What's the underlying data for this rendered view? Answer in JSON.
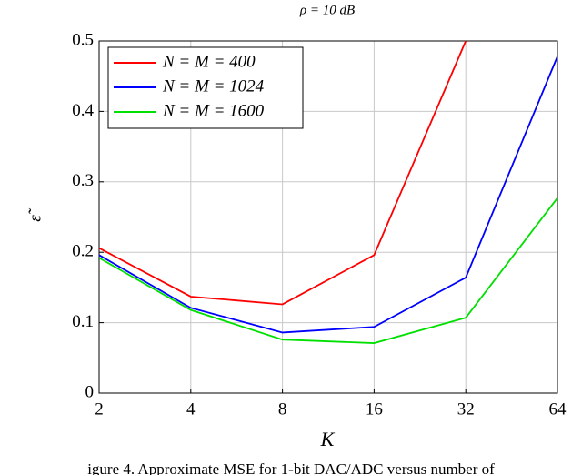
{
  "chart_data": {
    "type": "line",
    "title": "ρ = 10 dB",
    "x_label": "K",
    "y_label": "ε̃",
    "caption": "igure 4. Approximate MSE for 1-bit DAC/ADC versus number of",
    "x": [
      2,
      4,
      8,
      16,
      32,
      64
    ],
    "xscale": "log",
    "xlim": [
      2,
      64
    ],
    "xticks": [
      2,
      4,
      8,
      16,
      32,
      64
    ],
    "ylim": [
      0,
      0.5
    ],
    "yticks": [
      0,
      0.1,
      0.2,
      0.3,
      0.4,
      0.5
    ],
    "grid": true,
    "legend": "upper-left",
    "series": [
      {
        "name": "N = M = 400",
        "color": "#ff0000",
        "values": [
          0.206,
          0.137,
          0.126,
          0.196,
          0.5,
          null
        ]
      },
      {
        "name": "N = M = 1024",
        "color": "#0000ff",
        "values": [
          0.196,
          0.121,
          0.086,
          0.094,
          0.164,
          0.478
        ]
      },
      {
        "name": "N = M = 1600",
        "color": "#00e000",
        "values": [
          0.192,
          0.118,
          0.076,
          0.071,
          0.107,
          0.277
        ]
      }
    ]
  }
}
